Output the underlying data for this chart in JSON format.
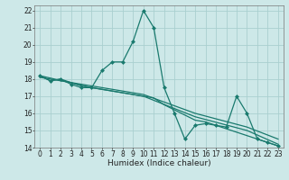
{
  "title": "",
  "xlabel": "Humidex (Indice chaleur)",
  "bg_color": "#cde8e8",
  "grid_color": "#aacfcf",
  "line_color": "#1a7a6e",
  "xlim": [
    -0.5,
    23.5
  ],
  "ylim": [
    14,
    22.3
  ],
  "yticks": [
    14,
    15,
    16,
    17,
    18,
    19,
    20,
    21,
    22
  ],
  "xticks": [
    0,
    1,
    2,
    3,
    4,
    5,
    6,
    7,
    8,
    9,
    10,
    11,
    12,
    13,
    14,
    15,
    16,
    17,
    18,
    19,
    20,
    21,
    22,
    23
  ],
  "line1": [
    [
      0,
      18.2
    ],
    [
      1,
      17.9
    ],
    [
      2,
      18.0
    ],
    [
      3,
      17.7
    ],
    [
      4,
      17.5
    ],
    [
      5,
      17.5
    ],
    [
      6,
      18.5
    ],
    [
      7,
      19.0
    ],
    [
      8,
      19.0
    ],
    [
      9,
      20.2
    ],
    [
      10,
      22.0
    ],
    [
      11,
      21.0
    ],
    [
      12,
      17.5
    ],
    [
      13,
      16.0
    ],
    [
      14,
      14.5
    ],
    [
      15,
      15.3
    ],
    [
      16,
      15.4
    ],
    [
      17,
      15.3
    ],
    [
      18,
      15.2
    ],
    [
      19,
      17.0
    ],
    [
      20,
      16.0
    ],
    [
      21,
      14.5
    ],
    [
      22,
      14.3
    ],
    [
      23,
      14.1
    ]
  ],
  "line2": [
    [
      0,
      18.2
    ],
    [
      1,
      17.9
    ],
    [
      2,
      18.0
    ],
    [
      3,
      17.8
    ],
    [
      4,
      17.6
    ],
    [
      5,
      17.5
    ],
    [
      6,
      17.4
    ],
    [
      7,
      17.3
    ],
    [
      8,
      17.2
    ],
    [
      9,
      17.1
    ],
    [
      10,
      17.0
    ],
    [
      11,
      16.9
    ],
    [
      12,
      16.5
    ],
    [
      13,
      16.2
    ],
    [
      14,
      15.9
    ],
    [
      15,
      15.6
    ],
    [
      16,
      15.5
    ],
    [
      17,
      15.3
    ],
    [
      18,
      15.1
    ],
    [
      19,
      14.9
    ],
    [
      20,
      14.7
    ],
    [
      21,
      14.5
    ],
    [
      22,
      14.3
    ],
    [
      23,
      14.1
    ]
  ],
  "line3": [
    [
      0,
      18.2
    ],
    [
      5,
      17.5
    ],
    [
      10,
      17.0
    ],
    [
      15,
      15.8
    ],
    [
      20,
      15.0
    ],
    [
      23,
      14.2
    ]
  ],
  "line4": [
    [
      0,
      18.1
    ],
    [
      5,
      17.6
    ],
    [
      10,
      17.1
    ],
    [
      15,
      16.0
    ],
    [
      20,
      15.2
    ],
    [
      23,
      14.5
    ]
  ],
  "marker_size": 2.5,
  "line_width": 0.9,
  "tick_fontsize": 5.5,
  "xlabel_fontsize": 6.5
}
